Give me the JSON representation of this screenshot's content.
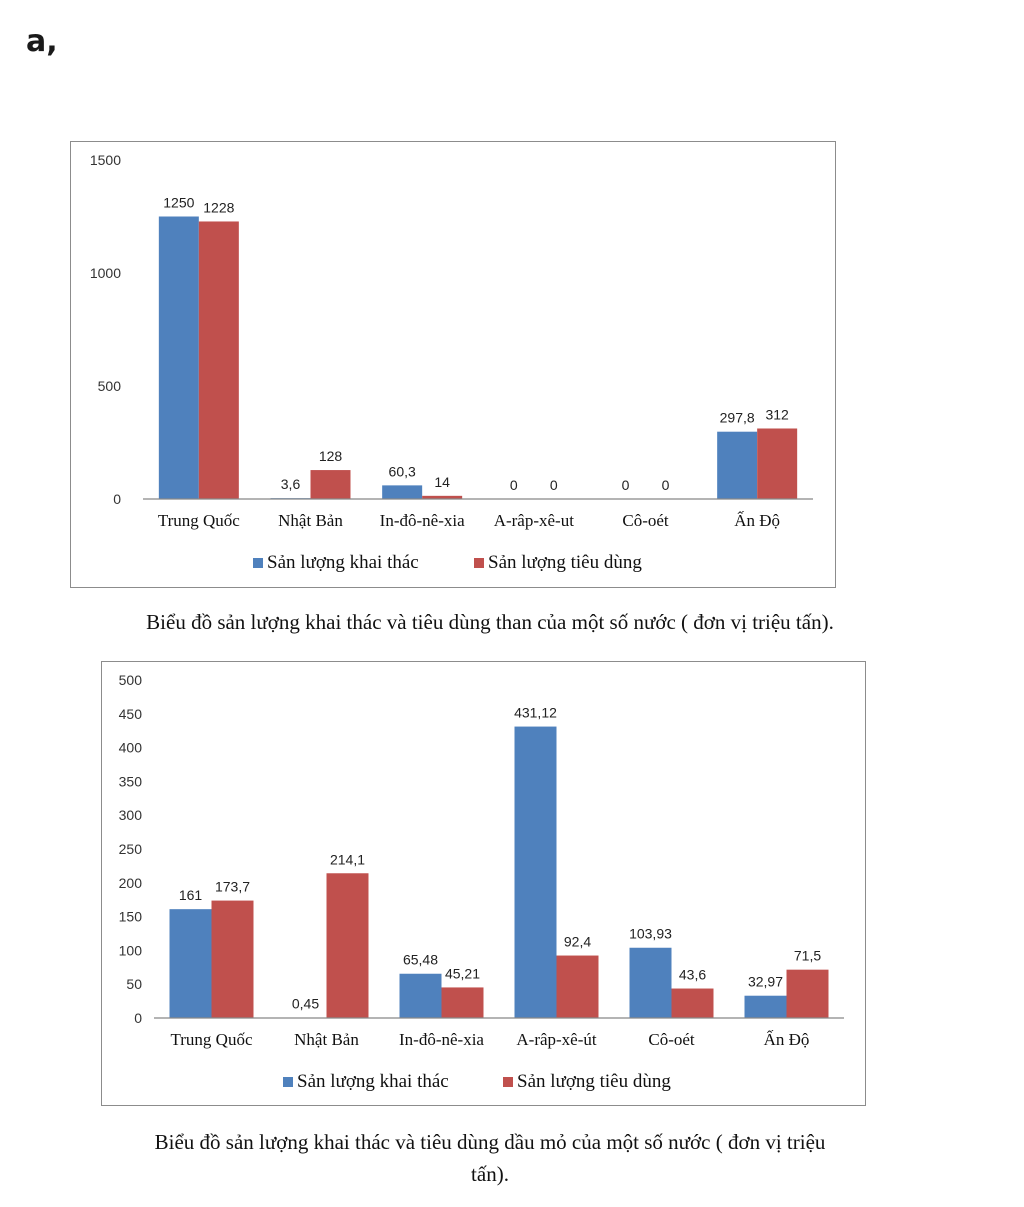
{
  "heading": "a,",
  "colors": {
    "series_a": "#4f81bd",
    "series_b": "#c0504d",
    "axis": "#888888"
  },
  "chart_data": [
    {
      "type": "bar",
      "categories": [
        "Trung Quốc",
        "Nhật Bản",
        "In-đô-nê-xia",
        "A-râp-xê-ut",
        "Cô-oét",
        "Ấn Độ"
      ],
      "series": [
        {
          "name": "Sản lượng khai thác",
          "values": [
            1250,
            3.6,
            60.3,
            0,
            0,
            297.8
          ],
          "labels": [
            "1250",
            "3,6",
            "60,3",
            "0",
            "0",
            "297,8"
          ]
        },
        {
          "name": "Sản lượng tiêu dùng",
          "values": [
            1228,
            128,
            14,
            0,
            0,
            312
          ],
          "labels": [
            "1228",
            "128",
            "14",
            "0",
            "0",
            "312"
          ]
        }
      ],
      "ylim": [
        0,
        1500
      ],
      "yticks": [
        0,
        500,
        1000,
        1500
      ],
      "legend": "bottom",
      "caption": "Biểu đồ sản lượng khai thác và tiêu dùng than của một số nước ( đơn vị triệu tấn)."
    },
    {
      "type": "bar",
      "categories": [
        "Trung Quốc",
        "Nhật Bản",
        "In-đô-nê-xia",
        "A-râp-xê-út",
        "Cô-oét",
        "Ấn Độ"
      ],
      "series": [
        {
          "name": "Sản lượng khai thác",
          "values": [
            161,
            0.45,
            65.48,
            431.12,
            103.93,
            32.97
          ],
          "labels": [
            "161",
            "0,45",
            "65,48",
            "431,12",
            "103,93",
            "32,97"
          ]
        },
        {
          "name": "Sản lượng tiêu dùng",
          "values": [
            173.7,
            214.1,
            45.21,
            92.4,
            43.6,
            71.5
          ],
          "labels": [
            "173,7",
            "214,1",
            "45,21",
            "92,4",
            "43,6",
            "71,5"
          ]
        }
      ],
      "ylim": [
        0,
        500
      ],
      "yticks": [
        0,
        50,
        100,
        150,
        200,
        250,
        300,
        350,
        400,
        450,
        500
      ],
      "legend": "bottom",
      "caption_line1": "Biểu đồ sản lượng khai thác và tiêu dùng dầu mỏ của một số nước ( đơn vị triệu",
      "caption_line2": "tấn)."
    }
  ]
}
